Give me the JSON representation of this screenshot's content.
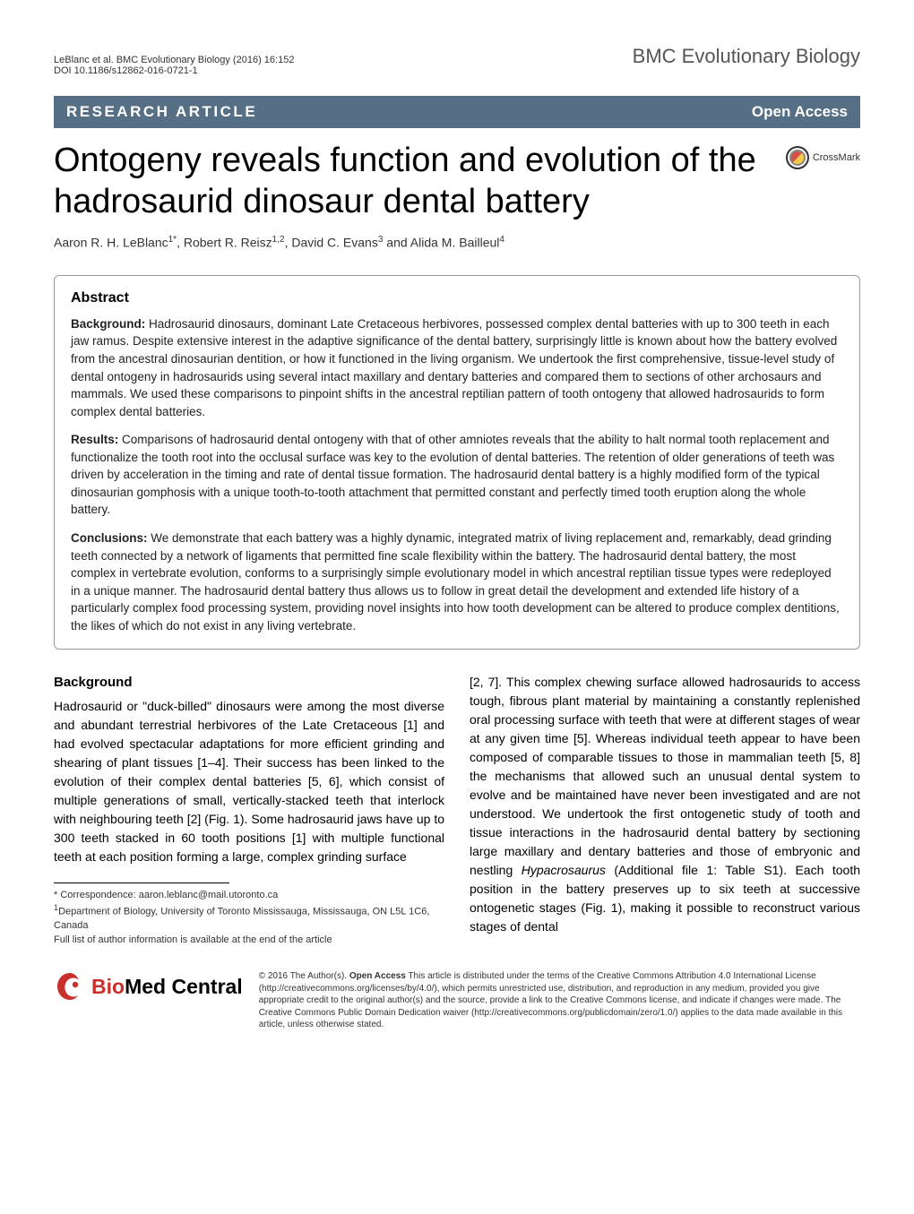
{
  "header": {
    "running_head": "LeBlanc et al. BMC Evolutionary Biology  (2016) 16:152",
    "doi": "DOI 10.1186/s12862-016-0721-1",
    "journal": "BMC Evolutionary Biology"
  },
  "banner": {
    "left": "RESEARCH ARTICLE",
    "right": "Open Access",
    "bg_color": "#566f85",
    "text_color": "#ffffff"
  },
  "crossmark": "CrossMark",
  "title": "Ontogeny reveals function and evolution of the hadrosaurid dinosaur dental battery",
  "authors_html": "Aaron R. H. LeBlanc<sup>1*</sup>, Robert R. Reisz<sup>1,2</sup>, David C. Evans<sup>3</sup> and Alida M. Bailleul<sup>4</sup>",
  "abstract": {
    "heading": "Abstract",
    "background_label": "Background:",
    "background_text": " Hadrosaurid dinosaurs, dominant Late Cretaceous herbivores, possessed complex dental batteries with up to 300 teeth in each jaw ramus. Despite extensive interest in the adaptive significance of the dental battery, surprisingly little is known about how the battery evolved from the ancestral dinosaurian dentition, or how it functioned in the living organism. We undertook the first comprehensive, tissue-level study of dental ontogeny in hadrosaurids using several intact maxillary and dentary batteries and compared them to sections of other archosaurs and mammals. We used these comparisons to pinpoint shifts in the ancestral reptilian pattern of tooth ontogeny that allowed hadrosaurids to form complex dental batteries.",
    "results_label": "Results:",
    "results_text": " Comparisons of hadrosaurid dental ontogeny with that of other amniotes reveals that the ability to halt normal tooth replacement and functionalize the tooth root into the occlusal surface was key to the evolution of dental batteries. The retention of older generations of teeth was driven by acceleration in the timing and rate of dental tissue formation. The hadrosaurid dental battery is a highly modified form of the typical dinosaurian gomphosis with a unique tooth-to-tooth attachment that permitted constant and perfectly timed tooth eruption along the whole battery.",
    "conclusions_label": "Conclusions:",
    "conclusions_text": " We demonstrate that each battery was a highly dynamic, integrated matrix of living replacement and, remarkably, dead grinding teeth connected by a network of ligaments that permitted fine scale flexibility within the battery. The hadrosaurid dental battery, the most complex in vertebrate evolution, conforms to a surprisingly simple evolutionary model in which ancestral reptilian tissue types were redeployed in a unique manner. The hadrosaurid dental battery thus allows us to follow in great detail the development and extended life history of a particularly complex food processing system, providing novel insights into how tooth development can be altered to produce complex dentitions, the likes of which do not exist in any living vertebrate."
  },
  "background": {
    "heading": "Background",
    "col1_html": "Hadrosaurid or \"duck-billed\" dinosaurs were among the most diverse and abundant terrestrial herbivores of the Late Cretaceous [1] and had evolved spectacular adaptations for more efficient grinding and shearing of plant tissues [1–4]. Their success has been linked to the evolution of their complex dental batteries [5, 6], which consist of multiple generations of small, vertically-stacked teeth that interlock with neighbouring teeth [2] (Fig. 1). Some hadrosaurid jaws have up to 300 teeth stacked in 60 tooth positions [1] with multiple functional teeth at each position forming a large, complex grinding surface",
    "col2_html": "[2, 7]. This complex chewing surface allowed hadrosaurids to access tough, fibrous plant material by maintaining a constantly replenished oral processing surface with teeth that were at different stages of wear at any given time [5]. Whereas individual teeth appear to have been composed of comparable tissues to those in mammalian teeth [5, 8] the mechanisms that allowed such an unusual dental system to evolve and be maintained have never been investigated and are not understood. We undertook the first ontogenetic study of tooth and tissue interactions in the hadrosaurid dental battery by sectioning large maxillary and dentary batteries and those of embryonic and nestling <em>Hypacrosaurus</em> (Additional file 1: Table S1). Each tooth position in the battery preserves up to six teeth at successive ontogenetic stages (Fig. 1), making it possible to reconstruct various stages of dental"
  },
  "correspondence": {
    "line1": "* Correspondence: aaron.leblanc@mail.utoronto.ca",
    "line2_html": "<sup>1</sup>Department of Biology, University of Toronto Mississauga, Mississauga, ON L5L 1C6, Canada",
    "line3": "Full list of author information is available at the end of the article"
  },
  "license": {
    "logo_bio": "Bio",
    "logo_med": "Med",
    "logo_central": " Central",
    "text_html": "© 2016 The Author(s). <b>Open Access</b> This article is distributed under the terms of the Creative Commons Attribution 4.0 International License (http://creativecommons.org/licenses/by/4.0/), which permits unrestricted use, distribution, and reproduction in any medium, provided you give appropriate credit to the original author(s) and the source, provide a link to the Creative Commons license, and indicate if changes were made. The Creative Commons Public Domain Dedication waiver (http://creativecommons.org/publicdomain/zero/1.0/) applies to the data made available in this article, unless otherwise stated."
  }
}
